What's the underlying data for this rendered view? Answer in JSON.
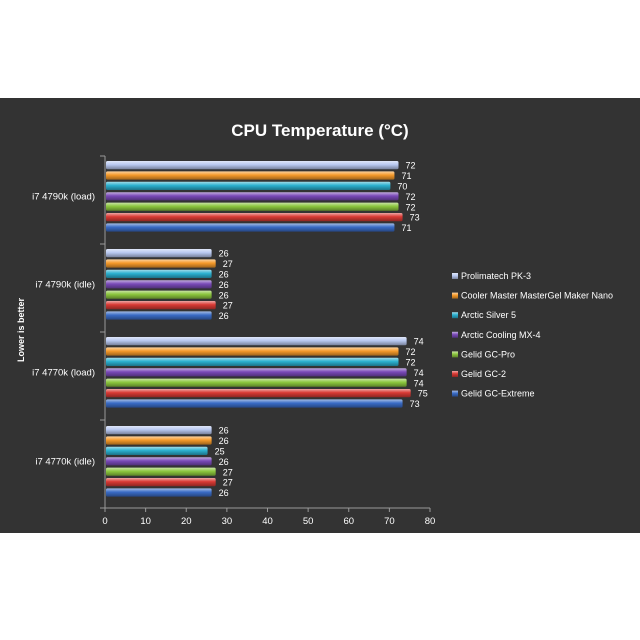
{
  "chart_data": {
    "type": "bar",
    "orientation": "horizontal",
    "title": "CPU Temperature (°C)",
    "ylabel": "Lower is better",
    "xlabel": "",
    "xlim": [
      0,
      80
    ],
    "xticks": [
      "0",
      "10",
      "20",
      "30",
      "40",
      "50",
      "60",
      "70",
      "80"
    ],
    "categories": [
      "i7 4790k (load)",
      "i7 4790k (idle)",
      "i7 4770k (load)",
      "i7 4770k (idle)"
    ],
    "series": [
      {
        "name": "Prolimatech PK-3",
        "color": "#b8c8f0",
        "values": [
          72,
          26,
          74,
          26
        ]
      },
      {
        "name": "Cooler Master MasterGel Maker Nano",
        "color": "#f59a2a",
        "values": [
          71,
          27,
          72,
          26
        ]
      },
      {
        "name": "Arctic Silver 5",
        "color": "#2bb0cf",
        "values": [
          70,
          26,
          72,
          25
        ]
      },
      {
        "name": "Arctic Cooling MX-4",
        "color": "#7a4ab8",
        "values": [
          72,
          26,
          74,
          26
        ]
      },
      {
        "name": "Gelid GC-Pro",
        "color": "#8cc63e",
        "values": [
          72,
          26,
          74,
          27
        ]
      },
      {
        "name": "Gelid GC-2",
        "color": "#d93a34",
        "values": [
          73,
          27,
          75,
          27
        ]
      },
      {
        "name": "Gelid GC-Extreme",
        "color": "#3a6cc6",
        "values": [
          71,
          26,
          73,
          26
        ]
      }
    ],
    "legend_position": "right",
    "grid": false,
    "background": "#333333"
  }
}
